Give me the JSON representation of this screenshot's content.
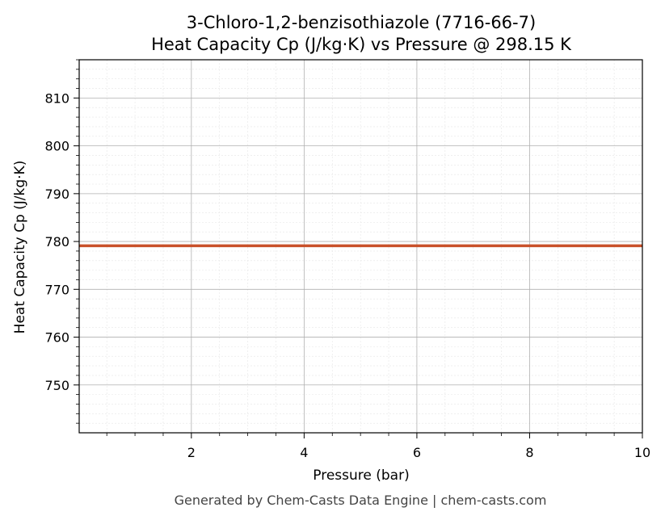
{
  "chart_data": {
    "type": "line",
    "title_line1": "3-Chloro-1,2-benzisothiazole (7716-66-7)",
    "title_line2": "Heat Capacity Cp (J/kg·K) vs Pressure @ 298.15 K",
    "xlabel": "Pressure (bar)",
    "ylabel": "Heat Capacity Cp (J/kg·K)",
    "xlim": [
      0.01,
      10
    ],
    "ylim": [
      740,
      818
    ],
    "x_ticks": [
      2,
      4,
      6,
      8,
      10
    ],
    "y_ticks": [
      750,
      760,
      770,
      780,
      790,
      800,
      810
    ],
    "grid": true,
    "series": [
      {
        "color": "#c9512a",
        "x": [
          0.01,
          1,
          2,
          3,
          4,
          5,
          6,
          7,
          8,
          9,
          10
        ],
        "y": [
          779.1,
          779.1,
          779.1,
          779.1,
          779.1,
          779.1,
          779.1,
          779.1,
          779.1,
          779.1,
          779.1
        ]
      }
    ]
  },
  "footer": "Generated by Chem-Casts Data Engine | chem-casts.com"
}
